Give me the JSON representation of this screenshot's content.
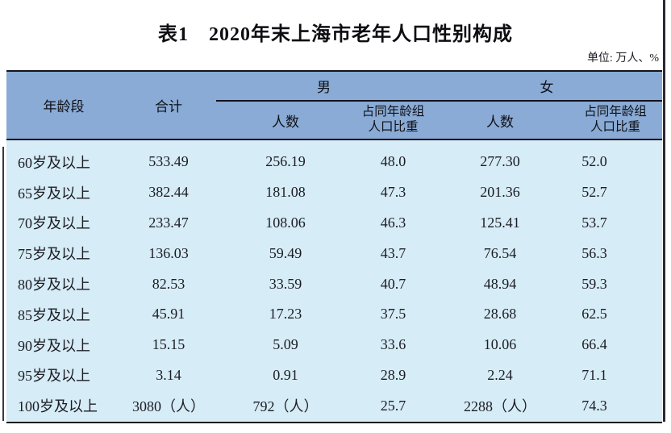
{
  "title": "表1　2020年末上海市老年人口性别构成",
  "unit_note": "单位: 万人、%",
  "colors": {
    "header_bg": "#89abd5",
    "body_bg": "#d6ecf6",
    "border_line": "#14141c",
    "text": "#1c1c24"
  },
  "table": {
    "header": {
      "age_group": "年龄段",
      "total": "合计",
      "male": "男",
      "female": "女",
      "count": "人数",
      "share_line1": "占同年龄组",
      "share_line2": "人口比重"
    },
    "rows": [
      {
        "age": "60岁及以上",
        "total": "533.49",
        "male_count": "256.19",
        "male_share": "48.0",
        "female_count": "277.30",
        "female_share": "52.0"
      },
      {
        "age": "65岁及以上",
        "total": "382.44",
        "male_count": "181.08",
        "male_share": "47.3",
        "female_count": "201.36",
        "female_share": "52.7"
      },
      {
        "age": "70岁及以上",
        "total": "233.47",
        "male_count": "108.06",
        "male_share": "46.3",
        "female_count": "125.41",
        "female_share": "53.7"
      },
      {
        "age": "75岁及以上",
        "total": "136.03",
        "male_count": "59.49",
        "male_share": "43.7",
        "female_count": "76.54",
        "female_share": "56.3"
      },
      {
        "age": "80岁及以上",
        "total": "82.53",
        "male_count": "33.59",
        "male_share": "40.7",
        "female_count": "48.94",
        "female_share": "59.3"
      },
      {
        "age": "85岁及以上",
        "total": "45.91",
        "male_count": "17.23",
        "male_share": "37.5",
        "female_count": "28.68",
        "female_share": "62.5"
      },
      {
        "age": "90岁及以上",
        "total": "15.15",
        "male_count": "5.09",
        "male_share": "33.6",
        "female_count": "10.06",
        "female_share": "66.4"
      },
      {
        "age": "95岁及以上",
        "total": "3.14",
        "male_count": "0.91",
        "male_share": "28.9",
        "female_count": "2.24",
        "female_share": "71.1"
      },
      {
        "age": "100岁及以上",
        "total": "3080（人）",
        "male_count": "792（人）",
        "male_share": "25.7",
        "female_count": "2288（人）",
        "female_share": "74.3"
      }
    ]
  }
}
